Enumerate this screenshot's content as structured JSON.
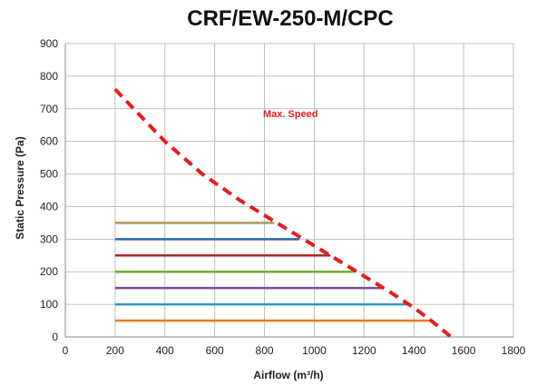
{
  "chart_data": {
    "type": "line",
    "title": "CRF/EW-250-M/CPC",
    "xlabel": "Airflow (m³/h)",
    "ylabel": "Static Pressure (Pa)",
    "xlim": [
      0,
      1800
    ],
    "ylim": [
      0,
      900
    ],
    "x_ticks": [
      "0",
      "200",
      "400",
      "600",
      "800",
      "1000",
      "1200",
      "1400",
      "1600",
      "1800"
    ],
    "y_ticks": [
      "0",
      "100",
      "200",
      "300",
      "400",
      "500",
      "600",
      "700",
      "800",
      "900"
    ],
    "grid": true,
    "annotation": "Max. Speed",
    "colors": {
      "max_speed": "#e02020",
      "grid": "#bfbfbf",
      "axis": "#888888"
    },
    "max_speed_curve": {
      "x": [
        200,
        400,
        550,
        700,
        850,
        1000,
        1150,
        1300,
        1400,
        1470,
        1550
      ],
      "y": [
        760,
        600,
        500,
        420,
        350,
        280,
        210,
        140,
        90,
        50,
        0
      ]
    },
    "series": [
      {
        "x": [
          200,
          840
        ],
        "y": [
          350,
          350
        ],
        "color": "#a99a5a"
      },
      {
        "x": [
          200,
          940
        ],
        "y": [
          300,
          300
        ],
        "color": "#2a66b0"
      },
      {
        "x": [
          200,
          1065
        ],
        "y": [
          250,
          250
        ],
        "color": "#b02a2a"
      },
      {
        "x": [
          200,
          1160
        ],
        "y": [
          200,
          200
        ],
        "color": "#6fae34"
      },
      {
        "x": [
          200,
          1270
        ],
        "y": [
          150,
          150
        ],
        "color": "#7a4a9e"
      },
      {
        "x": [
          200,
          1380
        ],
        "y": [
          100,
          100
        ],
        "color": "#2a9ab8"
      },
      {
        "x": [
          200,
          1470
        ],
        "y": [
          50,
          50
        ],
        "color": "#f07820"
      }
    ]
  }
}
